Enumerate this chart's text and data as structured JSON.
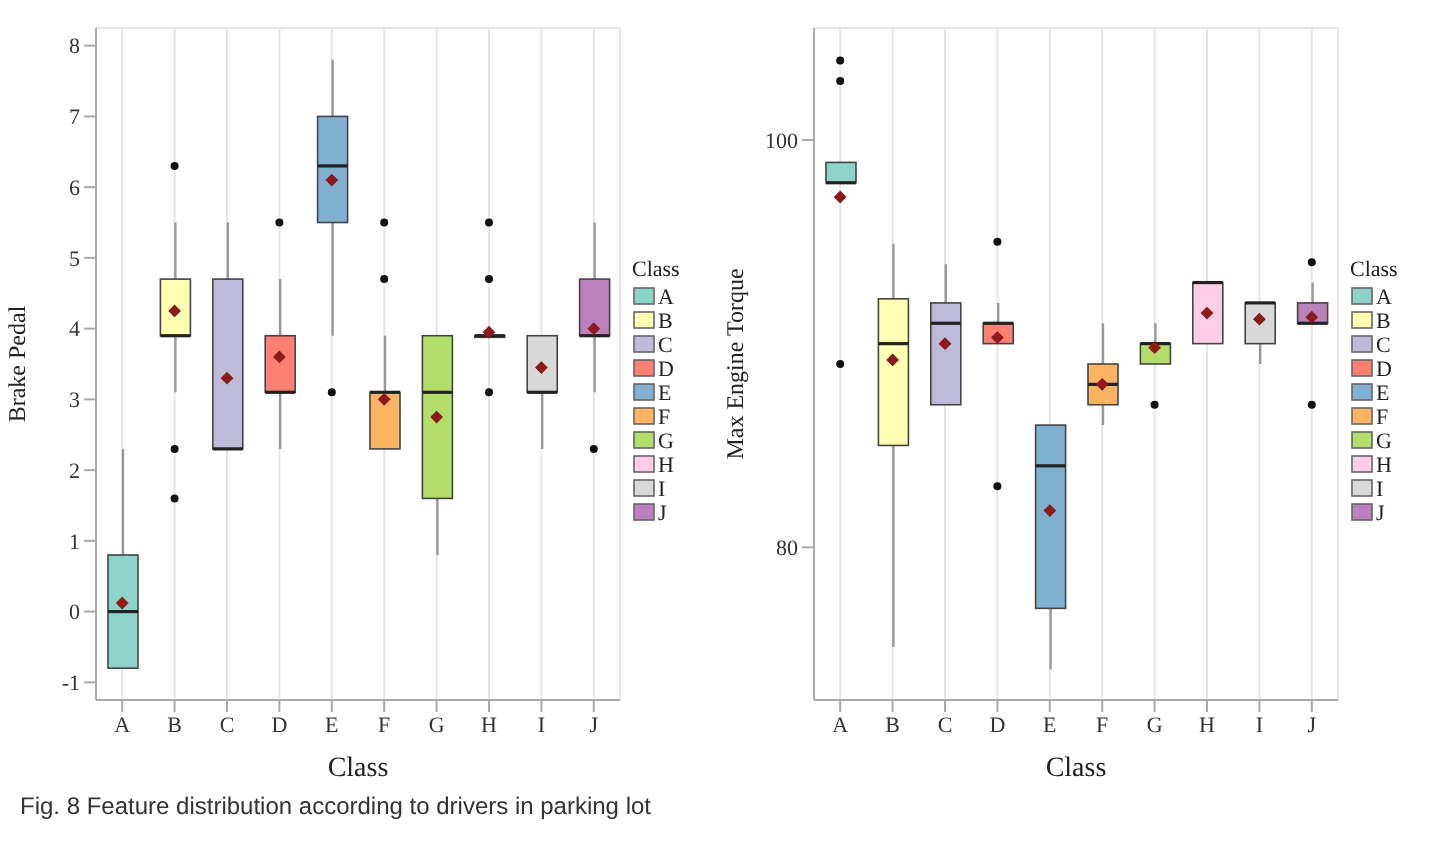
{
  "chart_data": [
    {
      "type": "box",
      "xlabel": "Class",
      "ylabel": "Brake Pedal",
      "legend": "right",
      "legend_title": "Class",
      "grid": true,
      "categories": [
        "A",
        "B",
        "C",
        "D",
        "E",
        "F",
        "G",
        "H",
        "I",
        "J"
      ],
      "ylim": [
        -1.25,
        8.25
      ],
      "yticks": [
        -1,
        0,
        1,
        2,
        3,
        4,
        5,
        6,
        7,
        8
      ],
      "series": [
        {
          "name": "A",
          "color": "#8dd3c7",
          "boxes": [
            {
              "low": -0.8,
              "q1": -0.8,
              "median": 0,
              "q3": 0.8,
              "high": 2.3,
              "mean": 0.12
            },
            null,
            null,
            null,
            null,
            null,
            null,
            null,
            null,
            null
          ]
        },
        {
          "name": "B",
          "color": "#ffffb3",
          "boxes": [
            null,
            {
              "low": 3.1,
              "q1": 3.9,
              "median": 3.9,
              "q3": 4.7,
              "high": 5.5,
              "mean": 4.25,
              "outliers": [
                6.3,
                2.3,
                1.6
              ]
            },
            null,
            null,
            null,
            null,
            null,
            null,
            null,
            null
          ]
        },
        {
          "name": "C",
          "color": "#bebada",
          "boxes": [
            null,
            null,
            {
              "low": 2.3,
              "q1": 2.3,
              "median": 2.3,
              "q3": 4.7,
              "high": 5.5,
              "mean": 3.3
            },
            null,
            null,
            null,
            null,
            null,
            null,
            null
          ]
        },
        {
          "name": "D",
          "color": "#fb8072",
          "boxes": [
            null,
            null,
            null,
            {
              "low": 2.3,
              "q1": 3.1,
              "median": 3.1,
              "q3": 3.9,
              "high": 4.7,
              "mean": 3.6,
              "outliers": [
                5.5
              ]
            },
            null,
            null,
            null,
            null,
            null,
            null
          ]
        },
        {
          "name": "E",
          "color": "#80b1d3",
          "boxes": [
            null,
            null,
            null,
            null,
            {
              "low": 3.9,
              "q1": 5.5,
              "median": 6.3,
              "q3": 7.0,
              "high": 7.8,
              "mean": 6.1,
              "outliers": [
                3.1
              ]
            },
            null,
            null,
            null,
            null,
            null
          ]
        },
        {
          "name": "F",
          "color": "#fdb462",
          "boxes": [
            null,
            null,
            null,
            null,
            null,
            {
              "low": 2.3,
              "q1": 2.3,
              "median": 3.1,
              "q3": 3.1,
              "high": 3.9,
              "mean": 3.0,
              "outliers": [
                5.5,
                4.7
              ]
            },
            null,
            null,
            null,
            null
          ]
        },
        {
          "name": "G",
          "color": "#b3de69",
          "boxes": [
            null,
            null,
            null,
            null,
            null,
            null,
            {
              "low": 0.8,
              "q1": 1.6,
              "median": 3.1,
              "q3": 3.9,
              "high": 3.9,
              "mean": 2.75
            },
            null,
            null,
            null
          ]
        },
        {
          "name": "H",
          "color": "#fccde5",
          "boxes": [
            null,
            null,
            null,
            null,
            null,
            null,
            null,
            {
              "low": 3.9,
              "q1": 3.9,
              "median": 3.9,
              "q3": 3.9,
              "high": 3.9,
              "mean": 3.95,
              "outliers": [
                5.5,
                4.7,
                3.1
              ]
            },
            null,
            null
          ]
        },
        {
          "name": "I",
          "color": "#d9d9d9",
          "boxes": [
            null,
            null,
            null,
            null,
            null,
            null,
            null,
            null,
            {
              "low": 2.3,
              "q1": 3.1,
              "median": 3.1,
              "q3": 3.9,
              "high": 3.9,
              "mean": 3.45
            },
            null
          ]
        },
        {
          "name": "J",
          "color": "#bc80bd",
          "boxes": [
            null,
            null,
            null,
            null,
            null,
            null,
            null,
            null,
            null,
            {
              "low": 3.1,
              "q1": 3.9,
              "median": 3.9,
              "q3": 4.7,
              "high": 5.5,
              "mean": 4.0,
              "outliers": [
                2.3
              ]
            }
          ]
        }
      ],
      "annotations": [
        "Fig. 8 Feature distribution according to drivers in parking lot"
      ]
    },
    {
      "type": "box",
      "xlabel": "Class",
      "ylabel": "Max Engine Torque",
      "legend": "right",
      "legend_title": "Class",
      "grid": true,
      "categories": [
        "A",
        "B",
        "C",
        "D",
        "E",
        "F",
        "G",
        "H",
        "I",
        "J"
      ],
      "ylim": [
        72.5,
        105.5
      ],
      "yticks": [
        80,
        100
      ],
      "series": [
        {
          "name": "A",
          "color": "#8dd3c7",
          "boxes": [
            {
              "low": 97.9,
              "q1": 97.9,
              "median": 97.9,
              "q3": 98.9,
              "high": 98.9,
              "mean": 97.2,
              "outliers": [
                103.9,
                102.9,
                89
              ]
            },
            null,
            null,
            null,
            null,
            null,
            null,
            null,
            null,
            null
          ]
        },
        {
          "name": "B",
          "color": "#ffffb3",
          "boxes": [
            null,
            {
              "low": 75.1,
              "q1": 85,
              "median": 90,
              "q3": 92.2,
              "high": 94.9,
              "mean": 89.2
            },
            null,
            null,
            null,
            null,
            null,
            null,
            null,
            null
          ]
        },
        {
          "name": "C",
          "color": "#bebada",
          "boxes": [
            null,
            null,
            {
              "low": 87,
              "q1": 87,
              "median": 91,
              "q3": 92,
              "high": 93.9,
              "mean": 90
            },
            null,
            null,
            null,
            null,
            null,
            null,
            null
          ]
        },
        {
          "name": "D",
          "color": "#fb8072",
          "boxes": [
            null,
            null,
            null,
            {
              "low": 90,
              "q1": 90,
              "median": 91,
              "q3": 91,
              "high": 92,
              "mean": 90.3,
              "outliers": [
                95,
                83
              ]
            },
            null,
            null,
            null,
            null,
            null,
            null
          ]
        },
        {
          "name": "E",
          "color": "#80b1d3",
          "boxes": [
            null,
            null,
            null,
            null,
            {
              "low": 74,
              "q1": 77,
              "median": 84,
              "q3": 86,
              "high": 86,
              "mean": 81.8
            },
            null,
            null,
            null,
            null,
            null
          ]
        },
        {
          "name": "F",
          "color": "#fdb462",
          "boxes": [
            null,
            null,
            null,
            null,
            null,
            {
              "low": 86,
              "q1": 87,
              "median": 88,
              "q3": 89,
              "high": 91,
              "mean": 88
            },
            null,
            null,
            null,
            null
          ]
        },
        {
          "name": "G",
          "color": "#b3de69",
          "boxes": [
            null,
            null,
            null,
            null,
            null,
            null,
            {
              "low": 89,
              "q1": 89,
              "median": 90,
              "q3": 90,
              "high": 91,
              "mean": 89.8,
              "outliers": [
                87
              ]
            },
            null,
            null,
            null
          ]
        },
        {
          "name": "H",
          "color": "#fccde5",
          "boxes": [
            null,
            null,
            null,
            null,
            null,
            null,
            null,
            {
              "low": 90,
              "q1": 90,
              "median": 93,
              "q3": 93,
              "high": 93,
              "mean": 91.5
            },
            null,
            null
          ]
        },
        {
          "name": "I",
          "color": "#d9d9d9",
          "boxes": [
            null,
            null,
            null,
            null,
            null,
            null,
            null,
            null,
            {
              "low": 89,
              "q1": 90,
              "median": 92,
              "q3": 92,
              "high": 92,
              "mean": 91.2
            },
            null
          ]
        },
        {
          "name": "J",
          "color": "#bc80bd",
          "boxes": [
            null,
            null,
            null,
            null,
            null,
            null,
            null,
            null,
            null,
            {
              "low": 91,
              "q1": 91,
              "median": 91,
              "q3": 92,
              "high": 93,
              "mean": 91.3,
              "outliers": [
                94,
                87
              ]
            }
          ]
        }
      ]
    }
  ]
}
